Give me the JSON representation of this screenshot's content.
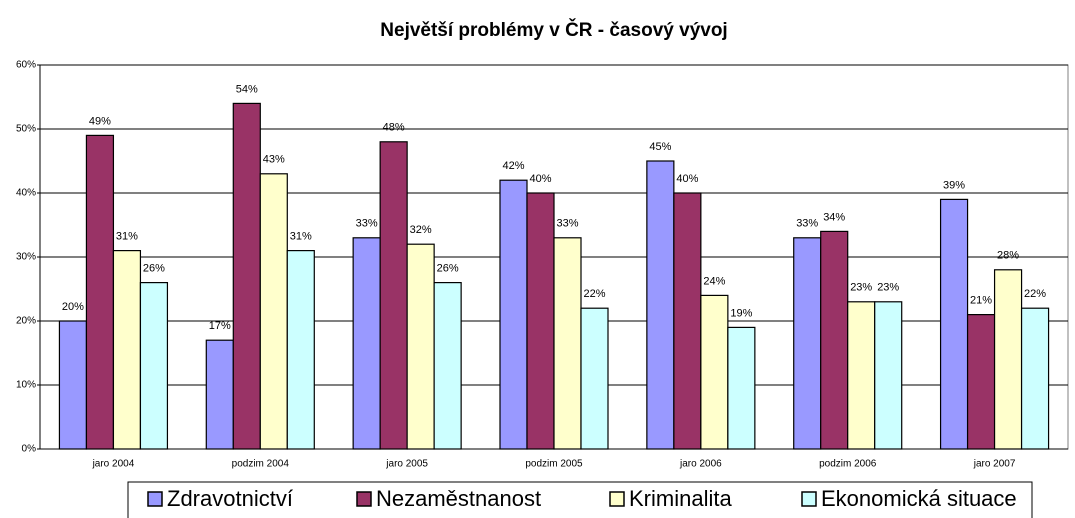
{
  "chart_data": {
    "type": "bar",
    "title": "Největší problémy v ČR - časový vývoj",
    "categories": [
      "jaro 2004",
      "podzim 2004",
      "jaro 2005",
      "podzim 2005",
      "jaro 2006",
      "podzim 2006",
      "jaro 2007"
    ],
    "series": [
      {
        "name": "Zdravotnictví",
        "color": "#9999ff",
        "values": [
          20,
          17,
          33,
          42,
          45,
          33,
          39
        ],
        "value_labels": [
          "20%",
          "17%",
          "33%",
          "42%",
          "45%",
          "33%",
          "39%"
        ]
      },
      {
        "name": "Nezaměstnanost",
        "color": "#993366",
        "values": [
          49,
          54,
          48,
          40,
          40,
          34,
          21
        ],
        "value_labels": [
          "49%",
          "54%",
          "48%",
          "40%",
          "40%",
          "34%",
          "21%"
        ]
      },
      {
        "name": "Kriminalita",
        "color": "#ffffcc",
        "values": [
          31,
          43,
          32,
          33,
          24,
          23,
          28
        ],
        "value_labels": [
          "31%",
          "43%",
          "32%",
          "33%",
          "24%",
          "23%",
          "28%"
        ]
      },
      {
        "name": "Ekonomická situace",
        "color": "#ccffff",
        "values": [
          26,
          31,
          26,
          22,
          19,
          23,
          22
        ],
        "value_labels": [
          "26%",
          "31%",
          "26%",
          "22%",
          "19%",
          "23%",
          "22%"
        ]
      }
    ],
    "ylim": [
      0,
      60
    ],
    "yticks": [
      {
        "value": 0,
        "label": "0%"
      },
      {
        "value": 10,
        "label": "10%"
      },
      {
        "value": 20,
        "label": "20%"
      },
      {
        "value": 30,
        "label": "30%"
      },
      {
        "value": 40,
        "label": "40%"
      },
      {
        "value": 50,
        "label": "50%"
      },
      {
        "value": 60,
        "label": "60%"
      }
    ],
    "grid": true,
    "legend": "bottom"
  }
}
